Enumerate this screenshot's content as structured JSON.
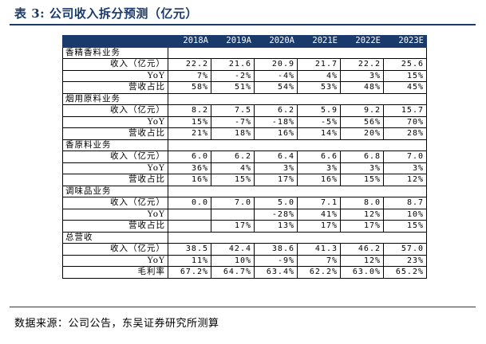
{
  "title": "表 3:  公司收入拆分预测（亿元）",
  "headers": [
    "",
    "2018A",
    "2019A",
    "2020A",
    "2021E",
    "2022E",
    "2023E"
  ],
  "sections": [
    {
      "name": "香精香料业务",
      "rows": [
        {
          "label": "收入（亿元）",
          "values": [
            "22.2",
            "21.6",
            "20.9",
            "21.7",
            "22.2",
            "25.6"
          ]
        },
        {
          "label": "YoY",
          "values": [
            "7%",
            "-2%",
            "-4%",
            "4%",
            "3%",
            "15%"
          ]
        },
        {
          "label": "营收占比",
          "values": [
            "58%",
            "51%",
            "54%",
            "53%",
            "48%",
            "45%"
          ]
        }
      ]
    },
    {
      "name": "烟用原料业务",
      "rows": [
        {
          "label": "收入（亿元）",
          "values": [
            "8.2",
            "7.5",
            "6.2",
            "5.9",
            "9.2",
            "15.7"
          ]
        },
        {
          "label": "YoY",
          "values": [
            "15%",
            "-7%",
            "-18%",
            "-5%",
            "56%",
            "70%"
          ]
        },
        {
          "label": "营收占比",
          "values": [
            "21%",
            "18%",
            "16%",
            "14%",
            "20%",
            "28%"
          ]
        }
      ]
    },
    {
      "name": "香原料业务",
      "rows": [
        {
          "label": "收入（亿元）",
          "values": [
            "6.0",
            "6.2",
            "6.4",
            "6.6",
            "6.8",
            "7.0"
          ]
        },
        {
          "label": "YoY",
          "values": [
            "36%",
            "4%",
            "3%",
            "3%",
            "3%",
            "3%"
          ]
        },
        {
          "label": "营收占比",
          "values": [
            "16%",
            "15%",
            "17%",
            "16%",
            "15%",
            "12%"
          ]
        }
      ]
    },
    {
      "name": "调味品业务",
      "rows": [
        {
          "label": "收入（亿元）",
          "values": [
            "0.0",
            "7.0",
            "5.0",
            "7.1",
            "8.0",
            "8.7"
          ]
        },
        {
          "label": "YoY",
          "values": [
            "",
            "",
            "-28%",
            "41%",
            "12%",
            "10%"
          ]
        },
        {
          "label": "营收占比",
          "values": [
            "",
            "17%",
            "13%",
            "17%",
            "17%",
            "15%"
          ]
        }
      ]
    },
    {
      "name": "总营收",
      "rows": [
        {
          "label": "收入（亿元）",
          "values": [
            "38.5",
            "42.4",
            "38.6",
            "41.3",
            "46.2",
            "57.0"
          ]
        },
        {
          "label": "YoY",
          "values": [
            "11%",
            "10%",
            "-9%",
            "7%",
            "12%",
            "23%"
          ]
        },
        {
          "label": "毛利率",
          "values": [
            "67.2%",
            "64.7%",
            "63.4%",
            "62.2%",
            "63.0%",
            "65.2%"
          ]
        }
      ]
    }
  ],
  "source": "数据来源：公司公告，东吴证券研究所测算",
  "colors": {
    "accent": "#1a3a6b"
  }
}
